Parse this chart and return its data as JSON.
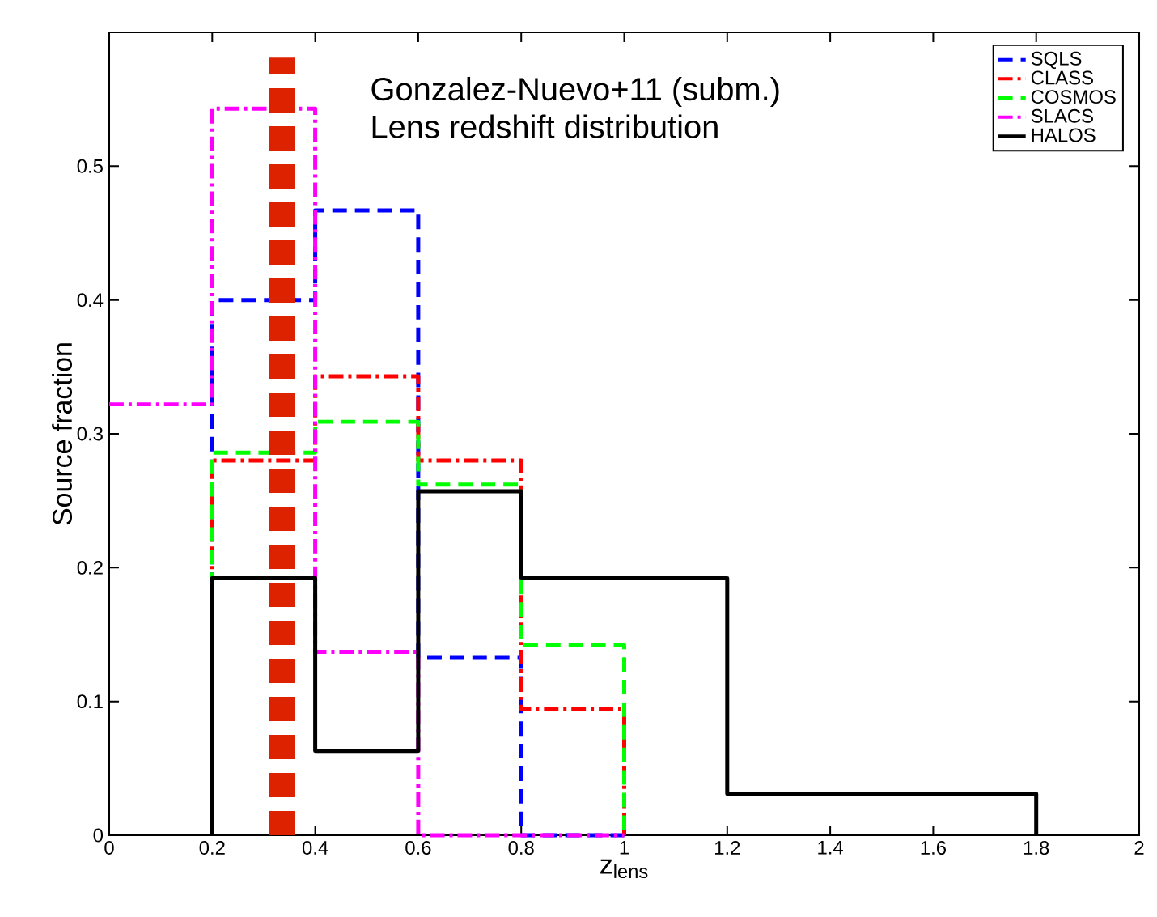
{
  "chart_data": {
    "type": "line",
    "xlabel": "z$_{lens}$",
    "ylabel": "Source fraction",
    "annotations": [
      "Gonzalez-Nuevo+11 (subm.)",
      "Lens redshift distribution"
    ],
    "series": [
      {
        "name": "SQLS",
        "color": "#0000ff",
        "line_style": "dashed",
        "x": [
          0.2,
          0.2,
          0.4,
          0.4,
          0.6,
          0.6,
          0.8,
          0.8,
          1.0
        ],
        "values": [
          0,
          0.4,
          0.4,
          0.467,
          0.467,
          0.133,
          0.133,
          0,
          0
        ]
      },
      {
        "name": "CLASS",
        "color": "#ff0000",
        "line_style": "dashdot",
        "x": [
          0.2,
          0.2,
          0.4,
          0.4,
          0.6,
          0.6,
          0.8,
          0.8,
          1.0,
          1.0
        ],
        "values": [
          0,
          0.28,
          0.28,
          0.343,
          0.343,
          0.28,
          0.28,
          0.094,
          0.094,
          0
        ]
      },
      {
        "name": "COSMOS",
        "color": "#00ff00",
        "line_style": "dashed",
        "x": [
          0.2,
          0.2,
          0.4,
          0.4,
          0.6,
          0.6,
          0.8,
          0.8,
          1.0,
          1.0
        ],
        "values": [
          0,
          0.286,
          0.286,
          0.309,
          0.309,
          0.262,
          0.262,
          0.142,
          0.142,
          0
        ]
      },
      {
        "name": "SLACS",
        "color": "#ff00ff",
        "line_style": "dashdot",
        "x": [
          0,
          0.2,
          0.2,
          0.4,
          0.4,
          0.6,
          0.6,
          1.0
        ],
        "values": [
          0.322,
          0.322,
          0.543,
          0.543,
          0.137,
          0.137,
          0,
          0
        ]
      },
      {
        "name": "HALOS",
        "color": "#000000",
        "line_style": "solid",
        "x": [
          0.2,
          0.2,
          0.4,
          0.4,
          0.6,
          0.6,
          0.8,
          0.8,
          1.2,
          1.2,
          1.8,
          1.8
        ],
        "values": [
          0,
          0.192,
          0.192,
          0.063,
          0.063,
          0.257,
          0.257,
          0.192,
          0.192,
          0.031,
          0.031,
          0
        ]
      }
    ],
    "ref_lines": [
      {
        "axis": "x",
        "value": 0.335,
        "color": "#dd2200",
        "line_style": "dashed"
      }
    ],
    "xlim": [
      0,
      2
    ],
    "ylim": [
      0,
      0.6
    ],
    "xticks": [
      0,
      0.2,
      0.4,
      0.6,
      0.8,
      1,
      1.2,
      1.4,
      1.6,
      1.8,
      2
    ],
    "yticks": [
      0,
      0.1,
      0.2,
      0.3,
      0.4,
      0.5
    ],
    "legend": "top right",
    "grid": false
  }
}
